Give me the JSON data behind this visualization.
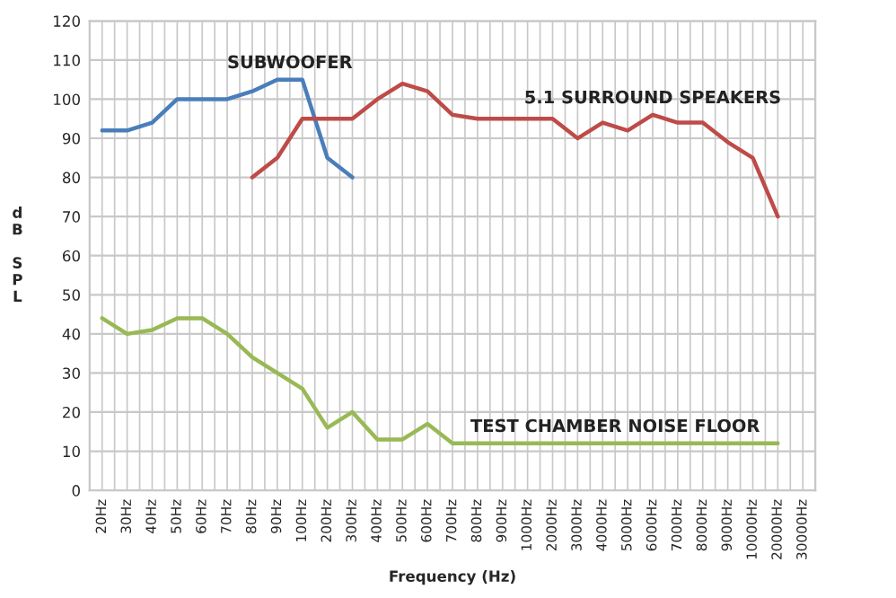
{
  "chart_data": {
    "type": "line",
    "xlabel": "Frequency (Hz)",
    "ylabel": "dB SPL",
    "categories": [
      "20Hz",
      "30Hz",
      "40Hz",
      "50Hz",
      "60Hz",
      "70Hz",
      "80Hz",
      "90Hz",
      "100Hz",
      "200Hz",
      "300Hz",
      "400Hz",
      "500Hz",
      "600Hz",
      "700Hz",
      "800Hz",
      "900Hz",
      "1000Hz",
      "2000Hz",
      "3000Hz",
      "4000Hz",
      "5000Hz",
      "6000Hz",
      "7000Hz",
      "8000Hz",
      "9000Hz",
      "10000Hz",
      "20000Hz",
      "30000Hz"
    ],
    "series": [
      {
        "name": "SUBWOOFER",
        "color": "#4a7ebb",
        "values": [
          92,
          92,
          94,
          100,
          100,
          100,
          102,
          105,
          105,
          85,
          80,
          null,
          null,
          null,
          null,
          null,
          null,
          null,
          null,
          null,
          null,
          null,
          null,
          null,
          null,
          null,
          null,
          null,
          null
        ]
      },
      {
        "name": "5.1 SURROUND SPEAKERS",
        "color": "#be4b48",
        "values": [
          null,
          null,
          null,
          null,
          null,
          null,
          80,
          85,
          95,
          95,
          95,
          100,
          104,
          102,
          96,
          95,
          95,
          95,
          95,
          90,
          94,
          92,
          96,
          94,
          94,
          89,
          85,
          70,
          null
        ]
      },
      {
        "name": "TEST CHAMBER NOISE FLOOR",
        "color": "#98b954",
        "values": [
          44,
          40,
          41,
          44,
          44,
          40,
          34,
          30,
          26,
          16,
          20,
          13,
          13,
          17,
          12,
          12,
          12,
          12,
          12,
          12,
          12,
          12,
          12,
          12,
          12,
          12,
          12,
          12,
          null
        ]
      }
    ],
    "ylim": [
      0,
      120
    ],
    "yticks": [
      0,
      10,
      20,
      30,
      40,
      50,
      60,
      70,
      80,
      90,
      100,
      110,
      120
    ],
    "grid": true,
    "legend": false,
    "marker": "none",
    "line_style": "solid"
  }
}
